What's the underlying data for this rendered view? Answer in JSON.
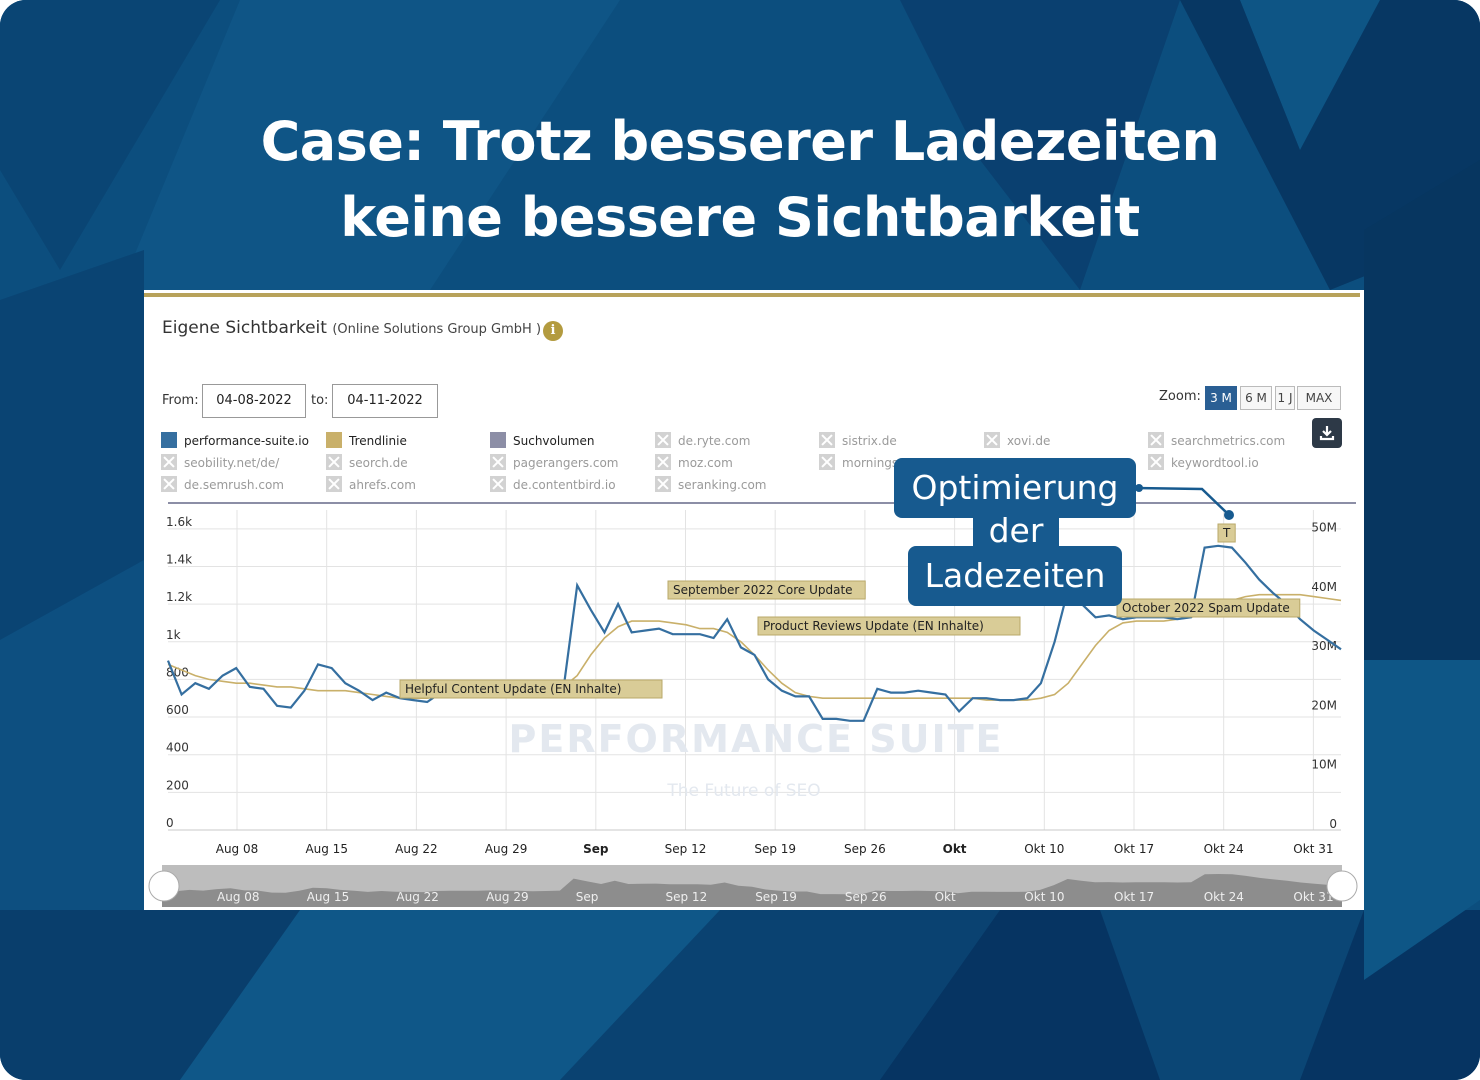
{
  "slide": {
    "headline_line1": "Case: Trotz besserer Ladezeiten",
    "headline_line2": "keine bessere Sichtbarkeit",
    "background_color": "#0c4e7e"
  },
  "panel": {
    "title": "Eigene Sichtbarkeit",
    "subtitle": "(Online Solutions Group GmbH )",
    "info_icon": "info-icon",
    "accent_color": "#b8a25a"
  },
  "date_range": {
    "from_label": "From:",
    "from_value": "04-08-2022",
    "to_label": "to:",
    "to_value": "04-11-2022"
  },
  "zoom": {
    "label": "Zoom:",
    "options": [
      "3 M",
      "6 M",
      "1 J",
      "MAX"
    ],
    "active": "3 M"
  },
  "download_icon": "download-icon",
  "legend": {
    "active": [
      {
        "label": "performance-suite.io",
        "color": "#356fa0"
      },
      {
        "label": "Trendlinie",
        "color": "#c9b06a"
      },
      {
        "label": "Suchvolumen",
        "color": "#8c8ea6"
      }
    ],
    "inactive": [
      "de.ryte.com",
      "sistrix.de",
      "xovi.de",
      "searchmetrics.com",
      "seobility.net/de/",
      "seorch.de",
      "pagerangers.com",
      "moz.com",
      "mornings",
      "keywordtool.io",
      "de.semrush.com",
      "ahrefs.com",
      "de.contentbird.io",
      "seranking.com"
    ]
  },
  "callout": {
    "line1": "Optimierung",
    "line2": "der",
    "line3": "Ladezeiten",
    "color": "#175a8f"
  },
  "chart_data": {
    "type": "line",
    "x_tick_labels": [
      "Aug 08",
      "Aug 15",
      "Aug 22",
      "Aug 29",
      "Sep",
      "Sep 12",
      "Sep 19",
      "Sep 26",
      "Okt",
      "Okt 10",
      "Okt 17",
      "Okt 24",
      "Okt 31"
    ],
    "y_left_ticks": [
      "0",
      "200",
      "400",
      "600",
      "800",
      "1k",
      "1.2k",
      "1.4k",
      "1.6k"
    ],
    "y_right_ticks": [
      "0",
      "10M",
      "20M",
      "30M",
      "40M",
      "50M"
    ],
    "ylim_left": [
      0,
      1700
    ],
    "ylim_right": [
      0,
      54000000
    ],
    "grid": true,
    "series": [
      {
        "name": "performance-suite.io",
        "color": "#356fa0",
        "values": [
          900,
          720,
          780,
          750,
          820,
          860,
          760,
          750,
          660,
          650,
          740,
          880,
          860,
          780,
          740,
          690,
          730,
          700,
          690,
          680,
          730,
          740,
          740,
          740,
          760,
          740,
          740,
          720,
          730,
          750,
          1300,
          1170,
          1050,
          1200,
          1050,
          1060,
          1070,
          1040,
          1040,
          1040,
          1020,
          1120,
          970,
          930,
          800,
          740,
          710,
          710,
          590,
          590,
          580,
          580,
          750,
          730,
          730,
          740,
          730,
          720,
          630,
          700,
          700,
          690,
          690,
          700,
          780,
          1000,
          1280,
          1200,
          1130,
          1140,
          1120,
          1130,
          1130,
          1130,
          1120,
          1130,
          1500,
          1510,
          1500,
          1420,
          1330,
          1260,
          1200,
          1120,
          1060,
          1010,
          960
        ]
      },
      {
        "name": "Trendlinie",
        "color": "#c9b06a",
        "values": [
          880,
          850,
          820,
          800,
          790,
          780,
          780,
          770,
          760,
          760,
          750,
          740,
          740,
          740,
          730,
          720,
          710,
          700,
          700,
          700,
          710,
          710,
          720,
          720,
          730,
          730,
          730,
          730,
          740,
          760,
          820,
          930,
          1020,
          1080,
          1110,
          1110,
          1110,
          1100,
          1090,
          1070,
          1070,
          1050,
          1000,
          930,
          850,
          780,
          730,
          710,
          700,
          700,
          700,
          700,
          700,
          700,
          700,
          700,
          700,
          700,
          700,
          700,
          690,
          690,
          690,
          690,
          700,
          720,
          780,
          880,
          980,
          1060,
          1100,
          1110,
          1110,
          1110,
          1120,
          1130,
          1150,
          1190,
          1220,
          1240,
          1250,
          1250,
          1250,
          1250,
          1240,
          1230,
          1220
        ]
      },
      {
        "name": "Suchvolumen",
        "color": "#8c8ea6",
        "axis": "right",
        "values": [
          54000000,
          54000000
        ]
      }
    ],
    "annotations": [
      "Helpful Content Update (EN Inhalte)",
      "September 2022 Core Update",
      "Product Reviews Update (EN Inhalte)",
      "October 2022 Spam Update",
      "T"
    ],
    "navigator_labels": [
      "Aug 08",
      "Aug 15",
      "Aug 22",
      "Aug 29",
      "Sep",
      "Sep 12",
      "Sep 19",
      "Sep 26",
      "Okt",
      "Okt 10",
      "Okt 17",
      "Okt 24",
      "Okt 31"
    ],
    "watermark": {
      "line1": "PERFORMANCE SUITE",
      "line2": "The Future of SEO"
    }
  }
}
